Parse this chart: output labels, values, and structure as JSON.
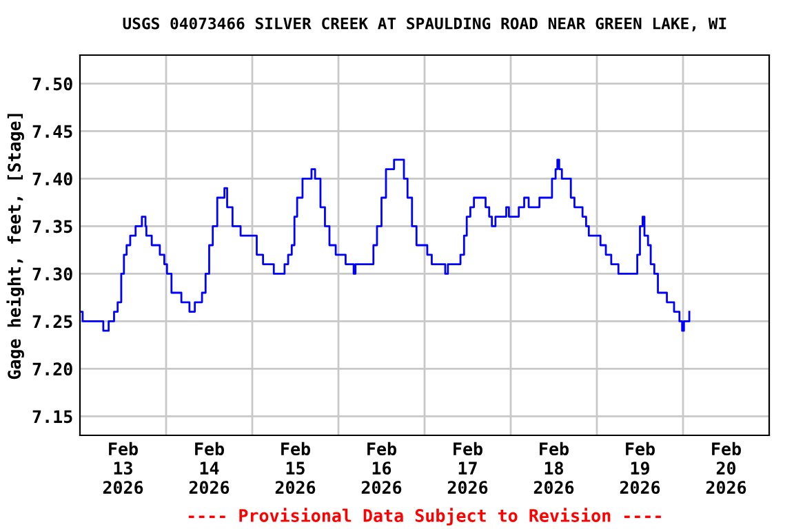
{
  "chart_data": {
    "type": "step",
    "title": "USGS 04073466 SILVER CREEK AT SPAULDING ROAD NEAR GREEN LAKE, WI",
    "ylabel": "Gage height, feet, [Stage]",
    "annotations": [
      "---- Provisional Data Subject to Revision ----"
    ],
    "x": [
      "2026-02-13T00:00",
      "2026-02-13T00:45",
      "2026-02-13T05:45",
      "2026-02-13T06:30",
      "2026-02-13T08:00",
      "2026-02-13T09:30",
      "2026-02-13T10:30",
      "2026-02-13T11:30",
      "2026-02-13T12:15",
      "2026-02-13T13:00",
      "2026-02-13T14:00",
      "2026-02-13T15:30",
      "2026-02-13T17:15",
      "2026-02-13T18:15",
      "2026-02-13T18:30",
      "2026-02-13T20:00",
      "2026-02-13T22:15",
      "2026-02-13T23:30",
      "2026-02-14T00:15",
      "2026-02-14T01:30",
      "2026-02-14T02:30",
      "2026-02-14T04:15",
      "2026-02-14T06:30",
      "2026-02-14T08:00",
      "2026-02-14T10:00",
      "2026-02-14T11:00",
      "2026-02-14T12:00",
      "2026-02-14T13:00",
      "2026-02-14T14:15",
      "2026-02-14T15:30",
      "2026-02-14T16:15",
      "2026-02-14T17:00",
      "2026-02-14T18:30",
      "2026-02-14T19:30",
      "2026-02-14T20:45",
      "2026-02-14T23:45",
      "2026-02-15T01:15",
      "2026-02-15T03:00",
      "2026-02-15T05:45",
      "2026-02-15T06:00",
      "2026-02-15T09:00",
      "2026-02-15T10:00",
      "2026-02-15T11:00",
      "2026-02-15T11:45",
      "2026-02-15T12:30",
      "2026-02-15T14:00",
      "2026-02-15T16:00",
      "2026-02-15T16:30",
      "2026-02-15T17:30",
      "2026-02-15T19:00",
      "2026-02-15T20:15",
      "2026-02-15T21:30",
      "2026-02-15T23:15",
      "2026-02-16T02:00",
      "2026-02-16T04:15",
      "2026-02-16T04:45",
      "2026-02-16T08:30",
      "2026-02-16T09:45",
      "2026-02-16T10:45",
      "2026-02-16T12:00",
      "2026-02-16T13:15",
      "2026-02-16T15:00",
      "2026-02-16T15:30",
      "2026-02-16T17:30",
      "2026-02-16T18:15",
      "2026-02-16T19:15",
      "2026-02-16T20:30",
      "2026-02-16T21:45",
      "2026-02-17T00:00",
      "2026-02-17T00:45",
      "2026-02-17T02:00",
      "2026-02-17T05:45",
      "2026-02-17T06:30",
      "2026-02-17T09:15",
      "2026-02-17T10:00",
      "2026-02-17T11:00",
      "2026-02-17T11:45",
      "2026-02-17T12:45",
      "2026-02-17T13:45",
      "2026-02-17T15:30",
      "2026-02-17T17:00",
      "2026-02-17T18:00",
      "2026-02-17T18:45",
      "2026-02-17T19:45",
      "2026-02-17T22:00",
      "2026-02-17T22:45",
      "2026-02-17T23:30",
      "2026-02-18T02:15",
      "2026-02-18T03:45",
      "2026-02-18T05:00",
      "2026-02-18T08:00",
      "2026-02-18T10:30",
      "2026-02-18T11:30",
      "2026-02-18T12:30",
      "2026-02-18T13:00",
      "2026-02-18T13:30",
      "2026-02-18T14:15",
      "2026-02-18T15:45",
      "2026-02-18T16:45",
      "2026-02-18T17:45",
      "2026-02-18T19:00",
      "2026-02-18T20:00",
      "2026-02-18T21:00",
      "2026-02-18T21:45",
      "2026-02-18T23:30",
      "2026-02-19T01:00",
      "2026-02-19T02:30",
      "2026-02-19T04:00",
      "2026-02-19T06:00",
      "2026-02-19T10:15",
      "2026-02-19T11:15",
      "2026-02-19T12:00",
      "2026-02-19T12:45",
      "2026-02-19T13:15",
      "2026-02-19T14:15",
      "2026-02-19T15:00",
      "2026-02-19T16:00",
      "2026-02-19T17:00",
      "2026-02-19T18:00",
      "2026-02-19T19:30",
      "2026-02-19T20:30",
      "2026-02-19T21:30",
      "2026-02-19T23:00",
      "2026-02-19T23:45",
      "2026-02-20T00:15",
      "2026-02-20T01:45"
    ],
    "series": [
      {
        "color": "#0000ff",
        "values": [
          7.26,
          7.25,
          7.25,
          7.24,
          7.25,
          7.26,
          7.27,
          7.3,
          7.32,
          7.33,
          7.34,
          7.35,
          7.36,
          7.35,
          7.34,
          7.33,
          7.32,
          7.31,
          7.3,
          7.28,
          7.28,
          7.27,
          7.26,
          7.27,
          7.28,
          7.3,
          7.33,
          7.35,
          7.38,
          7.38,
          7.39,
          7.37,
          7.35,
          7.35,
          7.34,
          7.34,
          7.32,
          7.31,
          7.31,
          7.3,
          7.31,
          7.32,
          7.33,
          7.36,
          7.38,
          7.4,
          7.4,
          7.41,
          7.4,
          7.37,
          7.35,
          7.33,
          7.32,
          7.31,
          7.3,
          7.31,
          7.31,
          7.33,
          7.35,
          7.38,
          7.41,
          7.41,
          7.42,
          7.42,
          7.4,
          7.38,
          7.35,
          7.33,
          7.33,
          7.32,
          7.31,
          7.3,
          7.31,
          7.31,
          7.32,
          7.34,
          7.36,
          7.37,
          7.38,
          7.38,
          7.37,
          7.36,
          7.35,
          7.36,
          7.36,
          7.37,
          7.36,
          7.37,
          7.38,
          7.37,
          7.38,
          7.38,
          7.4,
          7.41,
          7.42,
          7.41,
          7.4,
          7.4,
          7.38,
          7.37,
          7.37,
          7.36,
          7.35,
          7.34,
          7.34,
          7.33,
          7.32,
          7.31,
          7.3,
          7.3,
          7.32,
          7.35,
          7.36,
          7.34,
          7.33,
          7.31,
          7.3,
          7.28,
          7.28,
          7.27,
          7.27,
          7.26,
          7.25,
          7.24,
          7.25,
          7.26
        ]
      }
    ],
    "xlim": [
      "2026-02-13T00:00",
      "2026-02-21T00:00"
    ],
    "xticks": [
      {
        "value": "2026-02-13T12:00",
        "label": "Feb\n13\n2026"
      },
      {
        "value": "2026-02-14T00:00",
        "label": null
      },
      {
        "value": "2026-02-14T12:00",
        "label": "Feb\n14\n2026"
      },
      {
        "value": "2026-02-15T00:00",
        "label": null
      },
      {
        "value": "2026-02-15T12:00",
        "label": "Feb\n15\n2026"
      },
      {
        "value": "2026-02-16T00:00",
        "label": null
      },
      {
        "value": "2026-02-16T12:00",
        "label": "Feb\n16\n2026"
      },
      {
        "value": "2026-02-17T00:00",
        "label": null
      },
      {
        "value": "2026-02-17T12:00",
        "label": "Feb\n17\n2026"
      },
      {
        "value": "2026-02-18T00:00",
        "label": null
      },
      {
        "value": "2026-02-18T12:00",
        "label": "Feb\n18\n2026"
      },
      {
        "value": "2026-02-19T00:00",
        "label": null
      },
      {
        "value": "2026-02-19T12:00",
        "label": "Feb\n19\n2026"
      },
      {
        "value": "2026-02-20T00:00",
        "label": null
      },
      {
        "value": "2026-02-20T12:00",
        "label": "Feb\n20\n2026"
      }
    ],
    "ylim": [
      7.13,
      7.53
    ],
    "yticks": [
      {
        "value": 7.15,
        "label": "7.15"
      },
      {
        "value": 7.2,
        "label": "7.20"
      },
      {
        "value": 7.25,
        "label": "7.25"
      },
      {
        "value": 7.3,
        "label": "7.30"
      },
      {
        "value": 7.35,
        "label": "7.35"
      },
      {
        "value": 7.4,
        "label": "7.40"
      },
      {
        "value": 7.45,
        "label": "7.45"
      },
      {
        "value": 7.5,
        "label": "7.50"
      }
    ],
    "grid": true
  }
}
